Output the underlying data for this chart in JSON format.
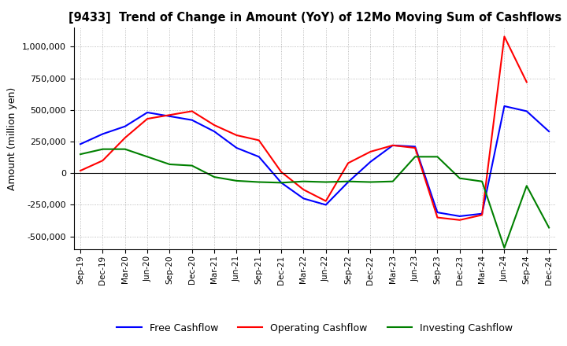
{
  "title": "[9433]  Trend of Change in Amount (YoY) of 12Mo Moving Sum of Cashflows",
  "ylabel": "Amount (million yen)",
  "ylim": [
    -600000,
    1150000
  ],
  "yticks": [
    -500000,
    -250000,
    0,
    250000,
    500000,
    750000,
    1000000
  ],
  "x_labels": [
    "Sep-19",
    "Dec-19",
    "Mar-20",
    "Jun-20",
    "Sep-20",
    "Dec-20",
    "Mar-21",
    "Jun-21",
    "Sep-21",
    "Dec-21",
    "Mar-22",
    "Jun-22",
    "Sep-22",
    "Dec-22",
    "Mar-23",
    "Jun-23",
    "Sep-23",
    "Dec-23",
    "Mar-24",
    "Jun-24",
    "Sep-24",
    "Dec-24"
  ],
  "operating": [
    20000,
    100000,
    280000,
    430000,
    460000,
    490000,
    380000,
    300000,
    260000,
    10000,
    -130000,
    -220000,
    80000,
    170000,
    220000,
    200000,
    -350000,
    -370000,
    -330000,
    1080000,
    720000,
    null
  ],
  "investing": [
    150000,
    190000,
    190000,
    130000,
    70000,
    60000,
    -30000,
    -60000,
    -70000,
    -75000,
    -65000,
    -70000,
    -65000,
    -70000,
    -65000,
    130000,
    130000,
    -40000,
    -65000,
    -590000,
    -100000,
    -430000
  ],
  "free": [
    230000,
    310000,
    370000,
    480000,
    450000,
    420000,
    330000,
    200000,
    130000,
    -75000,
    -200000,
    -250000,
    -70000,
    90000,
    220000,
    210000,
    -310000,
    -340000,
    -320000,
    530000,
    490000,
    330000
  ],
  "operating_color": "#ff0000",
  "investing_color": "#008000",
  "free_color": "#0000ff",
  "bg_color": "#ffffff",
  "grid_color": "#aaaaaa"
}
